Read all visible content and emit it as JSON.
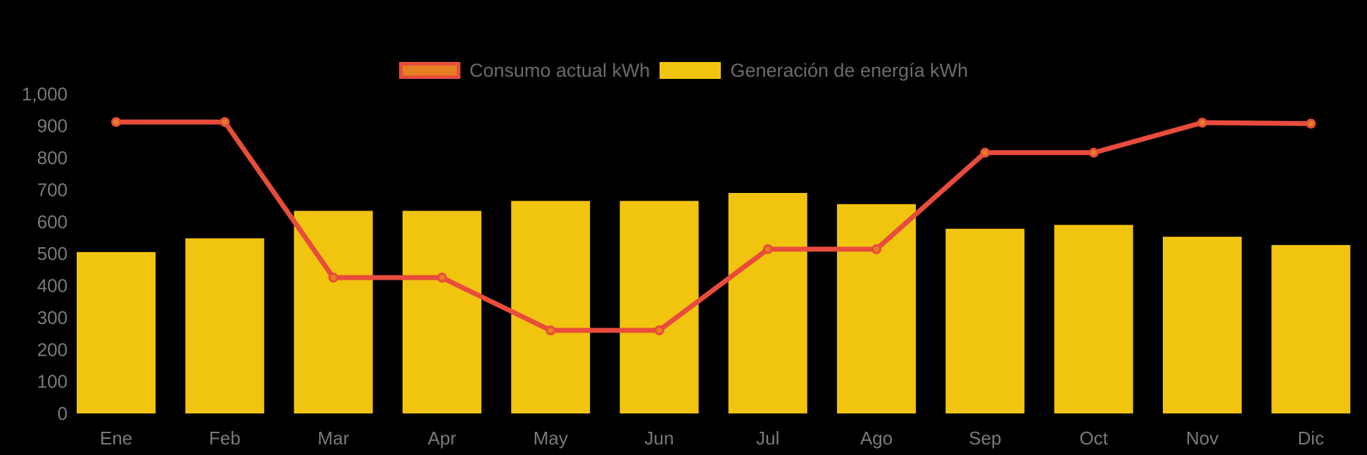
{
  "page": {
    "background": "#000000",
    "axis_label_color": "#7a7a7a",
    "legend_text_color": "#6b6b6b"
  },
  "legend": {
    "items": [
      {
        "id": "consumo",
        "label": "Consumo actual kWh",
        "swatch_fill": "#e67e22",
        "swatch_border": "#e74c3c"
      },
      {
        "id": "generacion",
        "label": "Generación de energía kWh",
        "swatch_fill": "#f1c40f",
        "swatch_border": "#f1c40f"
      }
    ]
  },
  "chart_data": {
    "type": "bar+line",
    "categories": [
      "Ene",
      "Feb",
      "Mar",
      "Apr",
      "May",
      "Jun",
      "Jul",
      "Ago",
      "Sep",
      "Oct",
      "Nov",
      "Dic"
    ],
    "series": [
      {
        "name": "Consumo actual kWh",
        "type": "line",
        "color": "#e74c3c",
        "marker_fill": "#e67e22",
        "marker_stroke": "#e74c3c",
        "values": [
          912,
          912,
          425,
          425,
          260,
          260,
          514,
          514,
          816,
          816,
          910,
          907
        ]
      },
      {
        "name": "Generación de energía kWh",
        "type": "bar",
        "color": "#f1c40f",
        "values": [
          505,
          548,
          634,
          634,
          665,
          665,
          690,
          655,
          578,
          590,
          553,
          527
        ]
      }
    ],
    "ylim": [
      0,
      1000
    ],
    "ytick_step": 100,
    "ytick_labels": [
      "0",
      "100",
      "200",
      "300",
      "400",
      "500",
      "600",
      "700",
      "800",
      "900",
      "1,000"
    ],
    "grid": false,
    "axis_lines": false,
    "legend_position": "top-center"
  }
}
